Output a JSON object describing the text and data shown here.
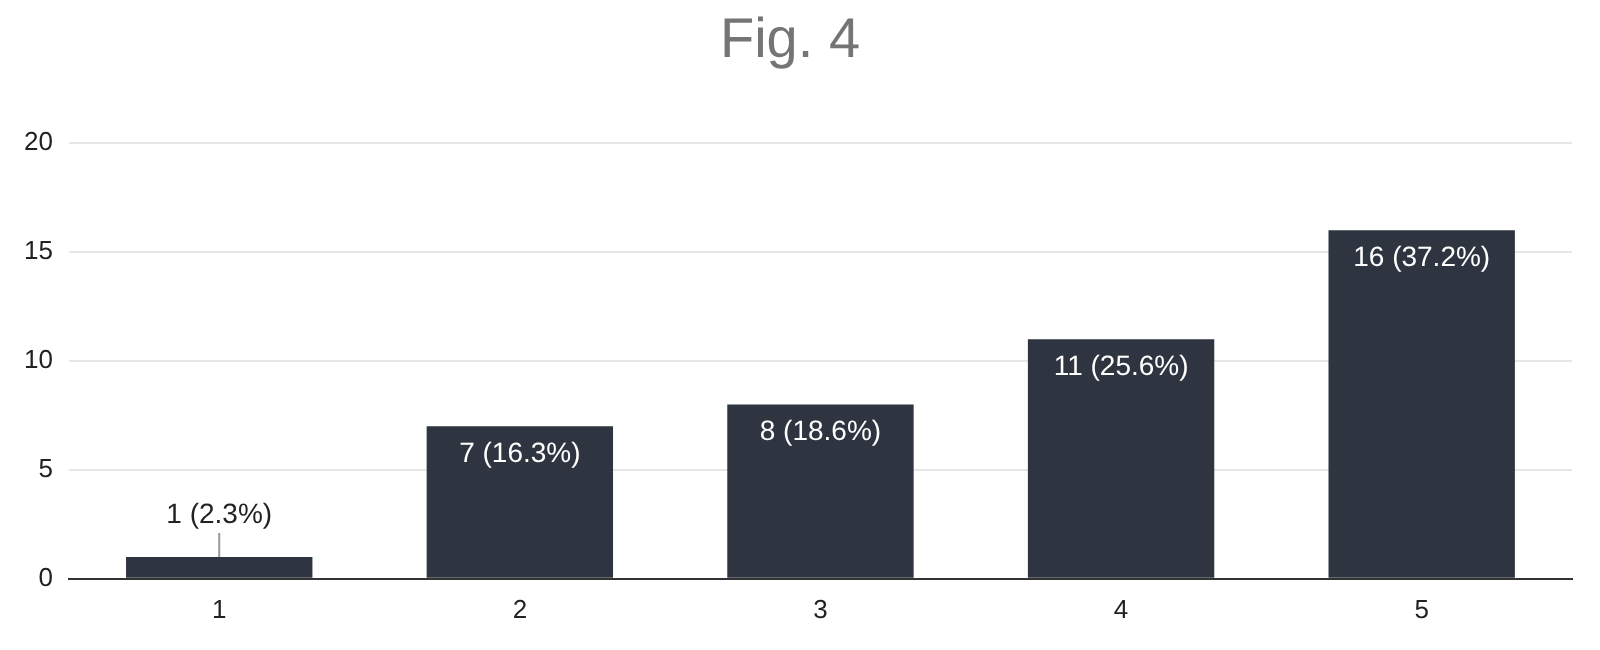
{
  "chart_data": {
    "type": "bar",
    "title": "Fig. 4",
    "categories": [
      "1",
      "2",
      "3",
      "4",
      "5"
    ],
    "values": [
      1,
      7,
      8,
      11,
      16
    ],
    "value_labels": [
      "1 (2.3%)",
      "7 (16.3%)",
      "8 (18.6%)",
      "11 (25.6%)",
      "16 (37.2%)"
    ],
    "color": "#2e3440",
    "ylim": [
      0,
      20
    ],
    "yticks": [
      0,
      5,
      10,
      15,
      20
    ],
    "grid": "y",
    "legend": false
  }
}
